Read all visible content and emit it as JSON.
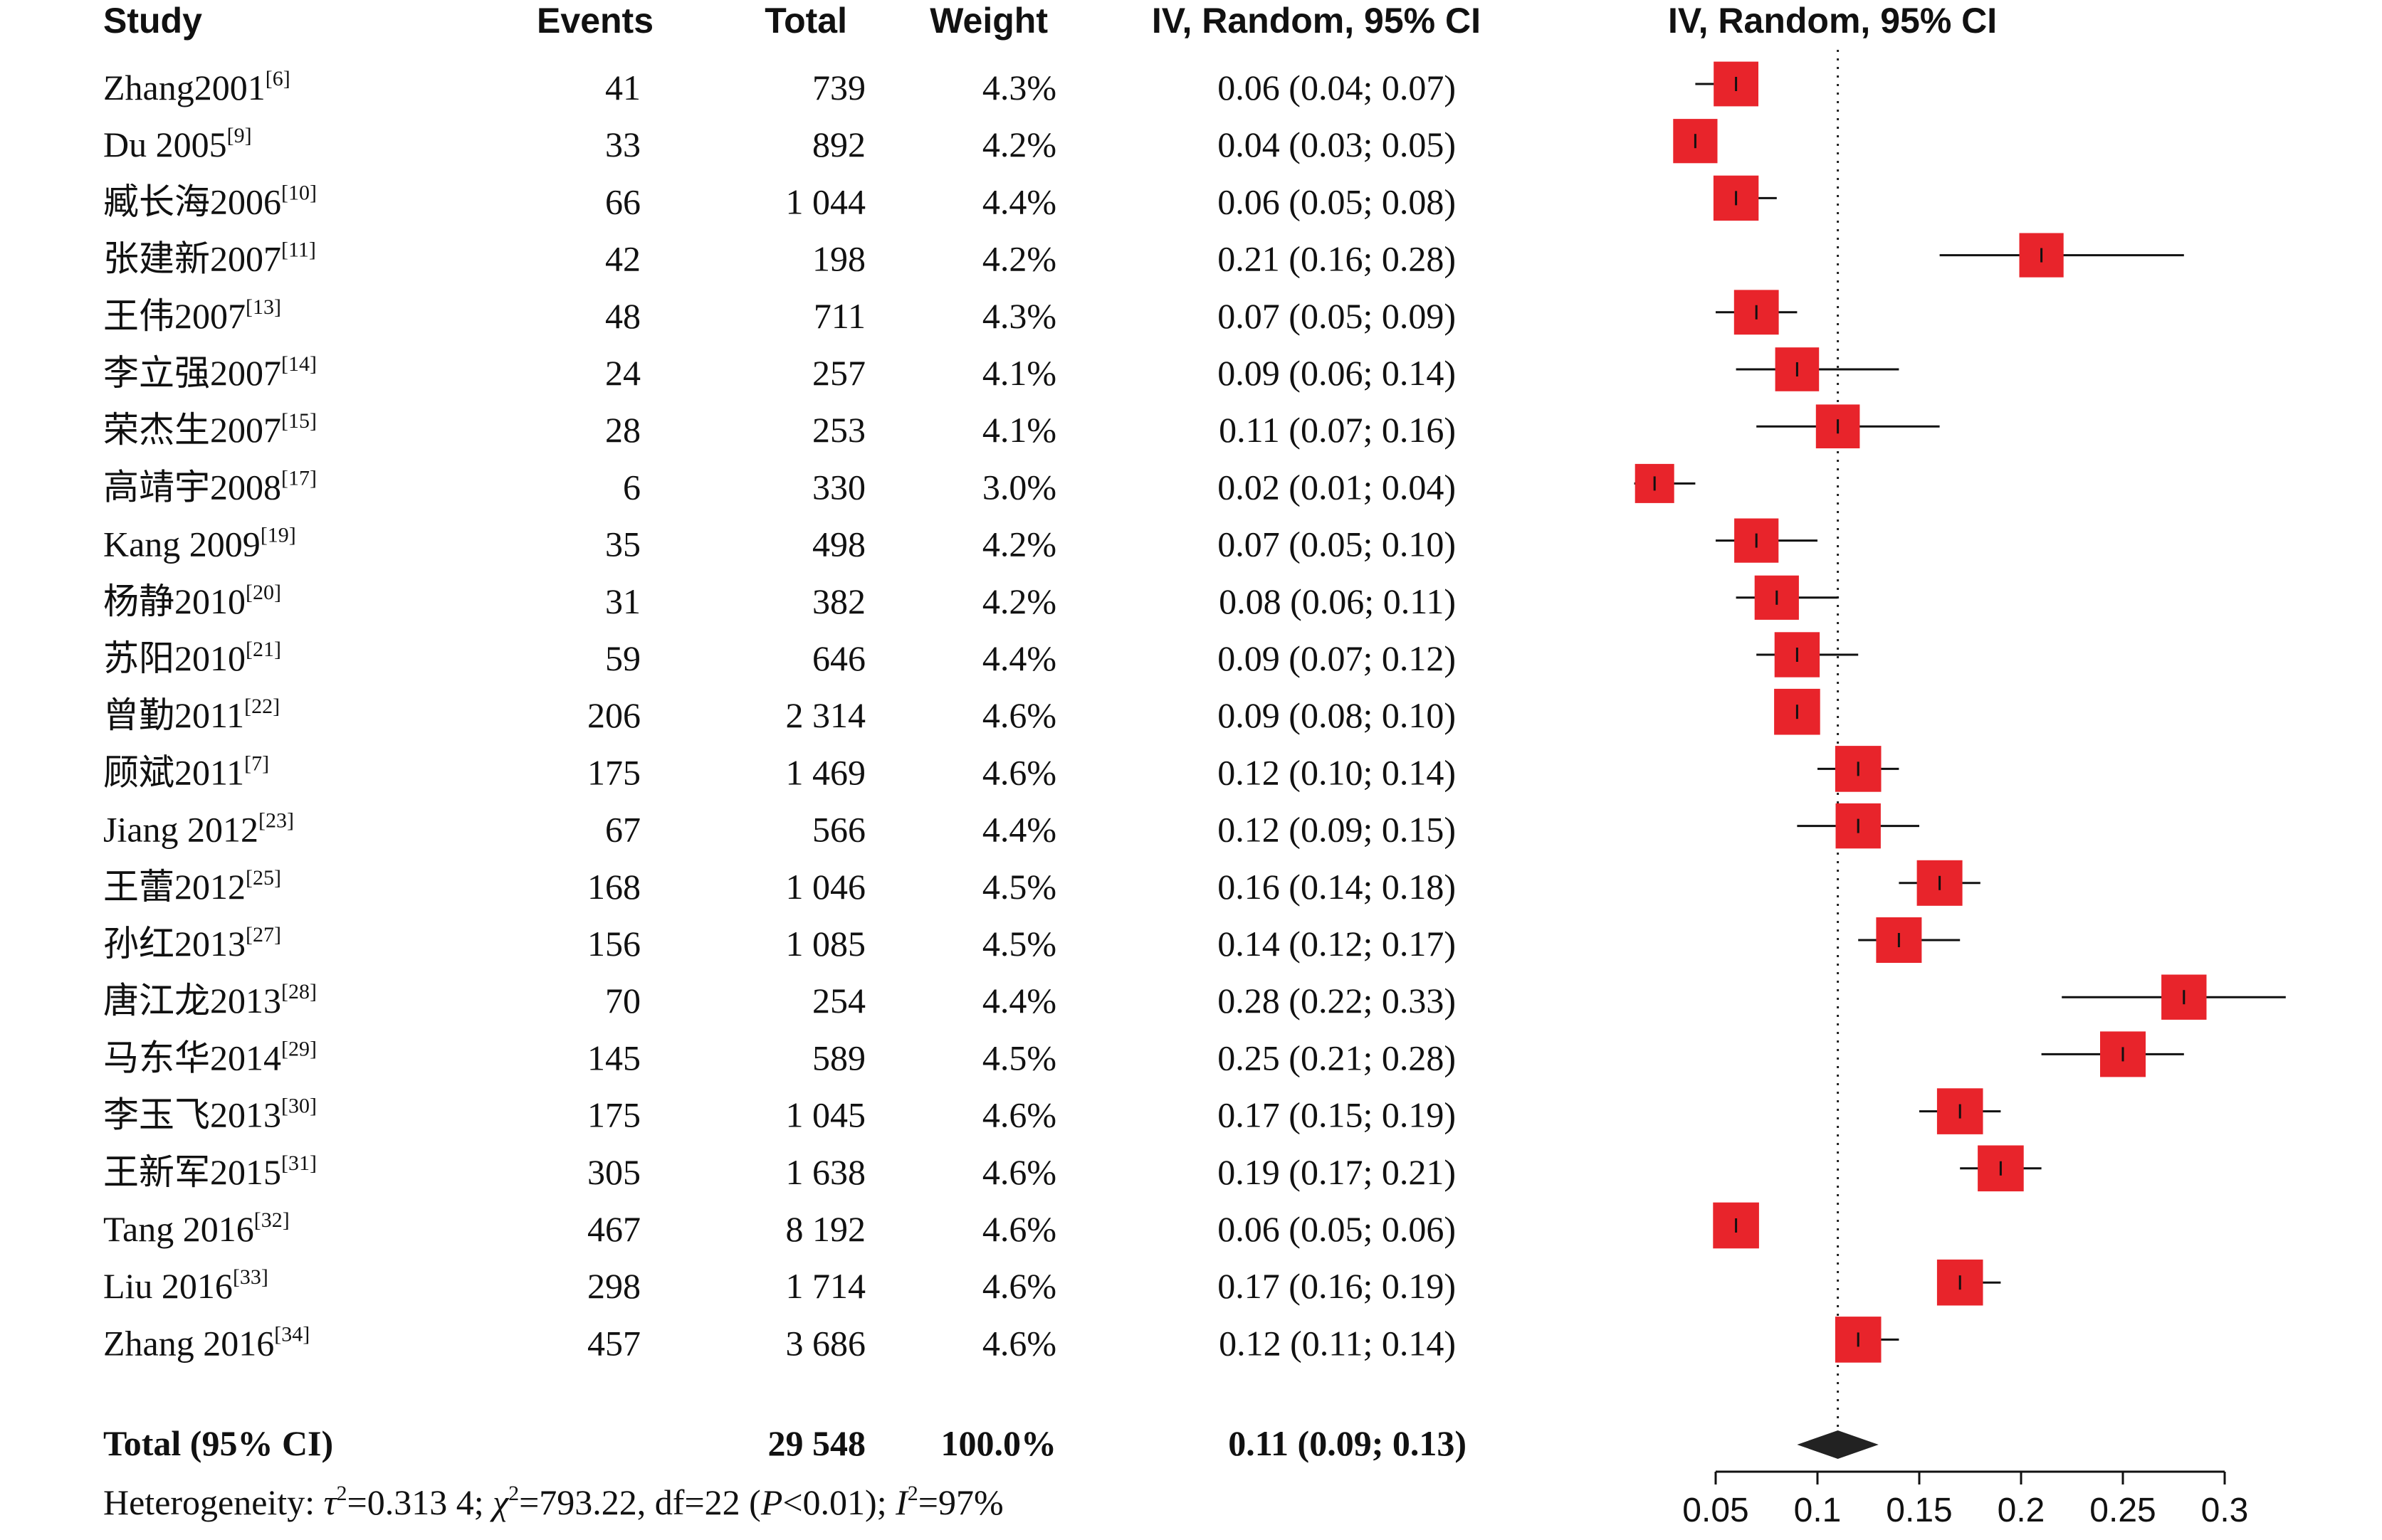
{
  "headers": {
    "study": "Study",
    "events": "Events",
    "total": "Total",
    "weight": "Weight",
    "ci": "IV, Random, 95% CI",
    "plot": "IV, Random, 95% CI"
  },
  "rows": [
    {
      "study": "Zhang2001",
      "ref": "[6]",
      "events": "41",
      "total": "739",
      "weight": "4.3%",
      "ci": "0.06 (0.04; 0.07)"
    },
    {
      "study": "Du 2005",
      "ref": "[9]",
      "events": "33",
      "total": "892",
      "weight": "4.2%",
      "ci": "0.04 (0.03; 0.05)"
    },
    {
      "study": "臧长海2006",
      "ref": "[10]",
      "events": "66",
      "total": "1 044",
      "weight": "4.4%",
      "ci": "0.06 (0.05; 0.08)"
    },
    {
      "study": "张建新2007",
      "ref": "[11]",
      "events": "42",
      "total": "198",
      "weight": "4.2%",
      "ci": "0.21 (0.16; 0.28)"
    },
    {
      "study": "王伟2007",
      "ref": "[13]",
      "events": "48",
      "total": "711",
      "weight": "4.3%",
      "ci": "0.07 (0.05; 0.09)"
    },
    {
      "study": "李立强2007",
      "ref": "[14]",
      "events": "24",
      "total": "257",
      "weight": "4.1%",
      "ci": "0.09 (0.06; 0.14)"
    },
    {
      "study": "荣杰生2007",
      "ref": "[15]",
      "events": "28",
      "total": "253",
      "weight": "4.1%",
      "ci": "0.11 (0.07; 0.16)"
    },
    {
      "study": "高靖宇2008",
      "ref": "[17]",
      "events": "6",
      "total": "330",
      "weight": "3.0%",
      "ci": "0.02 (0.01; 0.04)"
    },
    {
      "study": "Kang 2009",
      "ref": "[19]",
      "events": "35",
      "total": "498",
      "weight": "4.2%",
      "ci": "0.07 (0.05; 0.10)"
    },
    {
      "study": "杨静2010",
      "ref": "[20]",
      "events": "31",
      "total": "382",
      "weight": "4.2%",
      "ci": "0.08 (0.06; 0.11)"
    },
    {
      "study": "苏阳2010",
      "ref": "[21]",
      "events": "59",
      "total": "646",
      "weight": "4.4%",
      "ci": "0.09 (0.07; 0.12)"
    },
    {
      "study": "曾勤2011",
      "ref": "[22]",
      "events": "206",
      "total": "2 314",
      "weight": "4.6%",
      "ci": "0.09 (0.08; 0.10)"
    },
    {
      "study": "顾斌2011",
      "ref": "[7]",
      "events": "175",
      "total": "1 469",
      "weight": "4.6%",
      "ci": "0.12 (0.10; 0.14)"
    },
    {
      "study": "Jiang 2012",
      "ref": "[23]",
      "events": "67",
      "total": "566",
      "weight": "4.4%",
      "ci": "0.12 (0.09; 0.15)"
    },
    {
      "study": "王蕾2012",
      "ref": "[25]",
      "events": "168",
      "total": "1 046",
      "weight": "4.5%",
      "ci": "0.16 (0.14; 0.18)"
    },
    {
      "study": "孙红2013",
      "ref": "[27]",
      "events": "156",
      "total": "1 085",
      "weight": "4.5%",
      "ci": "0.14 (0.12; 0.17)"
    },
    {
      "study": "唐江龙2013",
      "ref": "[28]",
      "events": "70",
      "total": "254",
      "weight": "4.4%",
      "ci": "0.28 (0.22; 0.33)"
    },
    {
      "study": "马东华2014",
      "ref": "[29]",
      "events": "145",
      "total": "589",
      "weight": "4.5%",
      "ci": "0.25 (0.21; 0.28)"
    },
    {
      "study": "李玉飞2013",
      "ref": "[30]",
      "events": "175",
      "total": "1 045",
      "weight": "4.6%",
      "ci": "0.17 (0.15; 0.19)"
    },
    {
      "study": "王新军2015",
      "ref": "[31]",
      "events": "305",
      "total": "1 638",
      "weight": "4.6%",
      "ci": "0.19 (0.17; 0.21)"
    },
    {
      "study": "Tang 2016",
      "ref": "[32]",
      "events": "467",
      "total": "8 192",
      "weight": "4.6%",
      "ci": "0.06 (0.05; 0.06)"
    },
    {
      "study": "Liu 2016",
      "ref": "[33]",
      "events": "298",
      "total": "1 714",
      "weight": "4.6%",
      "ci": "0.17 (0.16; 0.19)"
    },
    {
      "study": "Zhang 2016",
      "ref": "[34]",
      "events": "457",
      "total": "3 686",
      "weight": "4.6%",
      "ci": "0.12 (0.11; 0.14)"
    }
  ],
  "total_row": {
    "label": "Total (95% CI)",
    "total": "29 548",
    "weight": "100.0%",
    "ci": "0.11 (0.09; 0.13)"
  },
  "heterogeneity": {
    "prefix": "Heterogeneity: ",
    "tau_sym": "τ",
    "tau_val": "=0.313 4; ",
    "chi_sym": "χ",
    "chi_val": "=793.22, df=22 (",
    "p_sym": "P",
    "p_val": "<0.01); ",
    "i_sym": "I",
    "i_val": "=97%",
    "sq": "2"
  },
  "chart_data": {
    "type": "forest",
    "x_ticks": [
      "0.05",
      "0.1",
      "0.15",
      "0.2",
      "0.25",
      "0.3"
    ],
    "x_tick_values": [
      0.05,
      0.1,
      0.15,
      0.2,
      0.25,
      0.3
    ],
    "xlim": [
      0.05,
      0.3
    ],
    "reference_line": 0.11,
    "studies": [
      {
        "est": 0.06,
        "lo": 0.04,
        "hi": 0.07,
        "weight": 4.3
      },
      {
        "est": 0.04,
        "lo": 0.03,
        "hi": 0.05,
        "weight": 4.2
      },
      {
        "est": 0.06,
        "lo": 0.05,
        "hi": 0.08,
        "weight": 4.4
      },
      {
        "est": 0.21,
        "lo": 0.16,
        "hi": 0.28,
        "weight": 4.2
      },
      {
        "est": 0.07,
        "lo": 0.05,
        "hi": 0.09,
        "weight": 4.3
      },
      {
        "est": 0.09,
        "lo": 0.06,
        "hi": 0.14,
        "weight": 4.1
      },
      {
        "est": 0.11,
        "lo": 0.07,
        "hi": 0.16,
        "weight": 4.1
      },
      {
        "est": 0.02,
        "lo": 0.01,
        "hi": 0.04,
        "weight": 3.0
      },
      {
        "est": 0.07,
        "lo": 0.05,
        "hi": 0.1,
        "weight": 4.2
      },
      {
        "est": 0.08,
        "lo": 0.06,
        "hi": 0.11,
        "weight": 4.2
      },
      {
        "est": 0.09,
        "lo": 0.07,
        "hi": 0.12,
        "weight": 4.4
      },
      {
        "est": 0.09,
        "lo": 0.08,
        "hi": 0.1,
        "weight": 4.6
      },
      {
        "est": 0.12,
        "lo": 0.1,
        "hi": 0.14,
        "weight": 4.6
      },
      {
        "est": 0.12,
        "lo": 0.09,
        "hi": 0.15,
        "weight": 4.4
      },
      {
        "est": 0.16,
        "lo": 0.14,
        "hi": 0.18,
        "weight": 4.5
      },
      {
        "est": 0.14,
        "lo": 0.12,
        "hi": 0.17,
        "weight": 4.5
      },
      {
        "est": 0.28,
        "lo": 0.22,
        "hi": 0.33,
        "weight": 4.4
      },
      {
        "est": 0.25,
        "lo": 0.21,
        "hi": 0.28,
        "weight": 4.5
      },
      {
        "est": 0.17,
        "lo": 0.15,
        "hi": 0.19,
        "weight": 4.6
      },
      {
        "est": 0.19,
        "lo": 0.17,
        "hi": 0.21,
        "weight": 4.6
      },
      {
        "est": 0.06,
        "lo": 0.05,
        "hi": 0.06,
        "weight": 4.6
      },
      {
        "est": 0.17,
        "lo": 0.16,
        "hi": 0.19,
        "weight": 4.6
      },
      {
        "est": 0.12,
        "lo": 0.11,
        "hi": 0.14,
        "weight": 4.6
      }
    ],
    "pooled": {
      "est": 0.11,
      "lo": 0.09,
      "hi": 0.13
    },
    "box_color": "#e8242b",
    "diamond_color": "#222222"
  }
}
